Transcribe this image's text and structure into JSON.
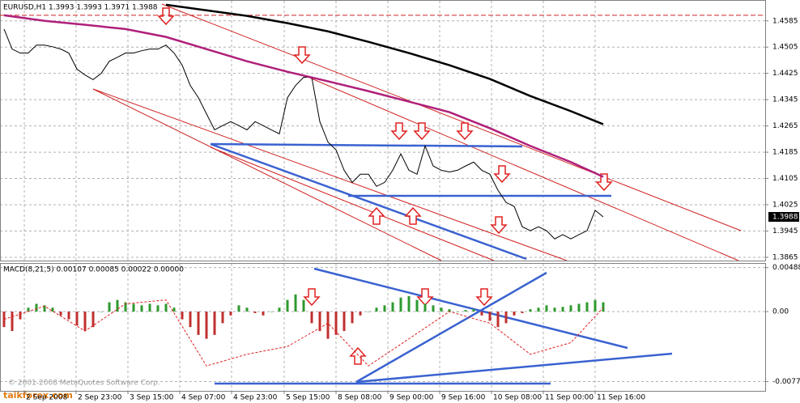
{
  "chart_data": [
    {
      "type": "line",
      "title": "EURUSD,H1  1.3993 1.3993 1.3971 1.3988",
      "xlim": [
        -0.5,
        94
      ],
      "ylim": [
        1.3855,
        1.4646
      ],
      "yticks": [
        1.4585,
        1.4505,
        1.4425,
        1.4345,
        1.4265,
        1.4185,
        1.4105,
        1.4025,
        1.3945,
        1.3865
      ],
      "grid": true,
      "levels": [
        1.4602
      ],
      "level_color": "#d02020",
      "series": [
        {
          "color": "#000000",
          "width": 1,
          "values": [
            1.456,
            1.4499,
            1.4487,
            1.4487,
            1.4511,
            1.4511,
            1.4506,
            1.4499,
            1.4487,
            1.4438,
            1.442,
            1.4406,
            1.4425,
            1.4462,
            1.4474,
            1.4487,
            1.4487,
            1.4494,
            1.4499,
            1.4499,
            1.4511,
            1.4487,
            1.445,
            1.4388,
            1.4351,
            1.4302,
            1.4253,
            1.4266,
            1.4278,
            1.4266,
            1.4253,
            1.4278,
            1.4266,
            1.4253,
            1.4241,
            1.4351,
            1.4388,
            1.4413,
            1.4413,
            1.4278,
            1.4216,
            1.4192,
            1.413,
            1.4093,
            1.4118,
            1.4118,
            1.4081,
            1.4093,
            1.413,
            1.418,
            1.413,
            1.4118,
            1.4204,
            1.4143,
            1.413,
            1.4125,
            1.413,
            1.4143,
            1.4155,
            1.413,
            1.4118,
            1.4069,
            1.4032,
            1.402,
            1.3958,
            1.3946,
            1.3958,
            1.3946,
            1.3921,
            1.3934,
            1.3921,
            1.3934,
            1.3946,
            1.4008,
            1.3988
          ]
        },
        {
          "color": "#000000",
          "width": 2.5,
          "x": [
            20,
            25,
            30,
            35,
            40,
            45,
            50,
            55,
            60,
            65,
            70,
            74
          ],
          "values": [
            1.4634,
            1.4617,
            1.46,
            1.4578,
            1.4553,
            1.4521,
            1.4487,
            1.445,
            1.4408,
            1.4356,
            1.431,
            1.427
          ]
        },
        {
          "color": "#b0207a",
          "width": 2.5,
          "x": [
            0,
            5,
            10,
            15,
            20,
            25,
            30,
            35,
            40,
            45,
            50,
            55,
            60,
            65,
            70,
            74
          ],
          "values": [
            1.4602,
            1.4585,
            1.4573,
            1.456,
            1.4536,
            1.4499,
            1.4462,
            1.443,
            1.4401,
            1.4371,
            1.4339,
            1.4307,
            1.4258,
            1.4204,
            1.4155,
            1.411
          ]
        }
      ]
    },
    {
      "type": "bar",
      "title": "MACD(8,21,5) 0.00107 0.00085 0.00022 0.00000",
      "xlim": [
        -0.5,
        94
      ],
      "ylim": [
        -0.0088,
        0.0053
      ],
      "yticks": [
        0.00488,
        {
          "value": 0,
          "label": "0.00"
        },
        -0.00777
      ],
      "xticks": [
        {
          "value": 2.5,
          "label": "2 Sep 2008"
        },
        {
          "value": 8.9,
          "label": "2 Sep 23:00"
        },
        {
          "value": 15.3,
          "label": "3 Sep 15:00"
        },
        {
          "value": 21.7,
          "label": "4 Sep 07:00"
        },
        {
          "value": 28.1,
          "label": "4 Sep 23:00"
        },
        {
          "value": 34.6,
          "label": "5 Sep 15:00"
        },
        {
          "value": 41,
          "label": "8 Sep 08:00"
        },
        {
          "value": 47.4,
          "label": "9 Sep 00:00"
        },
        {
          "value": 53.8,
          "label": "9 Sep 16:00"
        },
        {
          "value": 60.2,
          "label": "10 Sep 08:00"
        },
        {
          "value": 66.6,
          "label": "11 Sep 00:00"
        },
        {
          "value": 73,
          "label": "11 Sep 16:00"
        }
      ],
      "grid": true,
      "series": [
        {
          "color": "#2e9a2e",
          "neg_color": "#c03030",
          "values": [
            -0.00172,
            -0.00216,
            -0.00086,
            0.00043,
            0.00086,
            0.00069,
            0.00043,
            -0.00043,
            -0.00086,
            -0.00155,
            -0.00216,
            -0.00172,
            0,
            0.00103,
            0.00129,
            0.00103,
            0.00086,
            0.00069,
            0.00086,
            0.00069,
            0.00086,
            0.00043,
            -0.00086,
            -0.00172,
            -0.00259,
            -0.00302,
            -0.00259,
            -0.00129,
            -0.00043,
            0.00069,
            0.00043,
            -0.00017,
            -0.00043,
            0,
            0.00043,
            0.00129,
            0.0019,
            0.00129,
            -0.00129,
            -0.00216,
            -0.00302,
            -0.00259,
            -0.00216,
            -0.00129,
            -0.00043,
            0,
            0.00043,
            0.00069,
            0.00103,
            0.00155,
            0.00172,
            0.00129,
            0.00086,
            0.00069,
            0.00043,
            0.00026,
            0,
            0.00017,
            0.00026,
            -0.00043,
            -0.00103,
            -0.00172,
            -0.00129,
            -0.00043,
            -0.00017,
            0.00026,
            0.00043,
            0.00069,
            0.00043,
            0.00052,
            0.00069,
            0.00086,
            0.00103,
            0.00129,
            0.00103
          ]
        },
        {
          "type": "line",
          "color": "#e02020",
          "dash": true,
          "x": [
            0,
            5,
            10,
            15,
            20,
            25,
            30,
            35,
            40,
            45,
            50,
            55,
            60,
            65,
            70,
            74
          ],
          "values": [
            -0.00086,
            0.0006,
            -0.00216,
            0.00086,
            0.00129,
            -0.00603,
            -0.00474,
            -0.00388,
            -0.00129,
            -0.00603,
            -0.00302,
            0,
            -0.00129,
            -0.00474,
            -0.00345,
            0.00043
          ]
        }
      ]
    }
  ],
  "watermark": {
    "copyright": "© 2001-2008 MetaQuotes Software Corp.",
    "site": "taikforex.com"
  }
}
